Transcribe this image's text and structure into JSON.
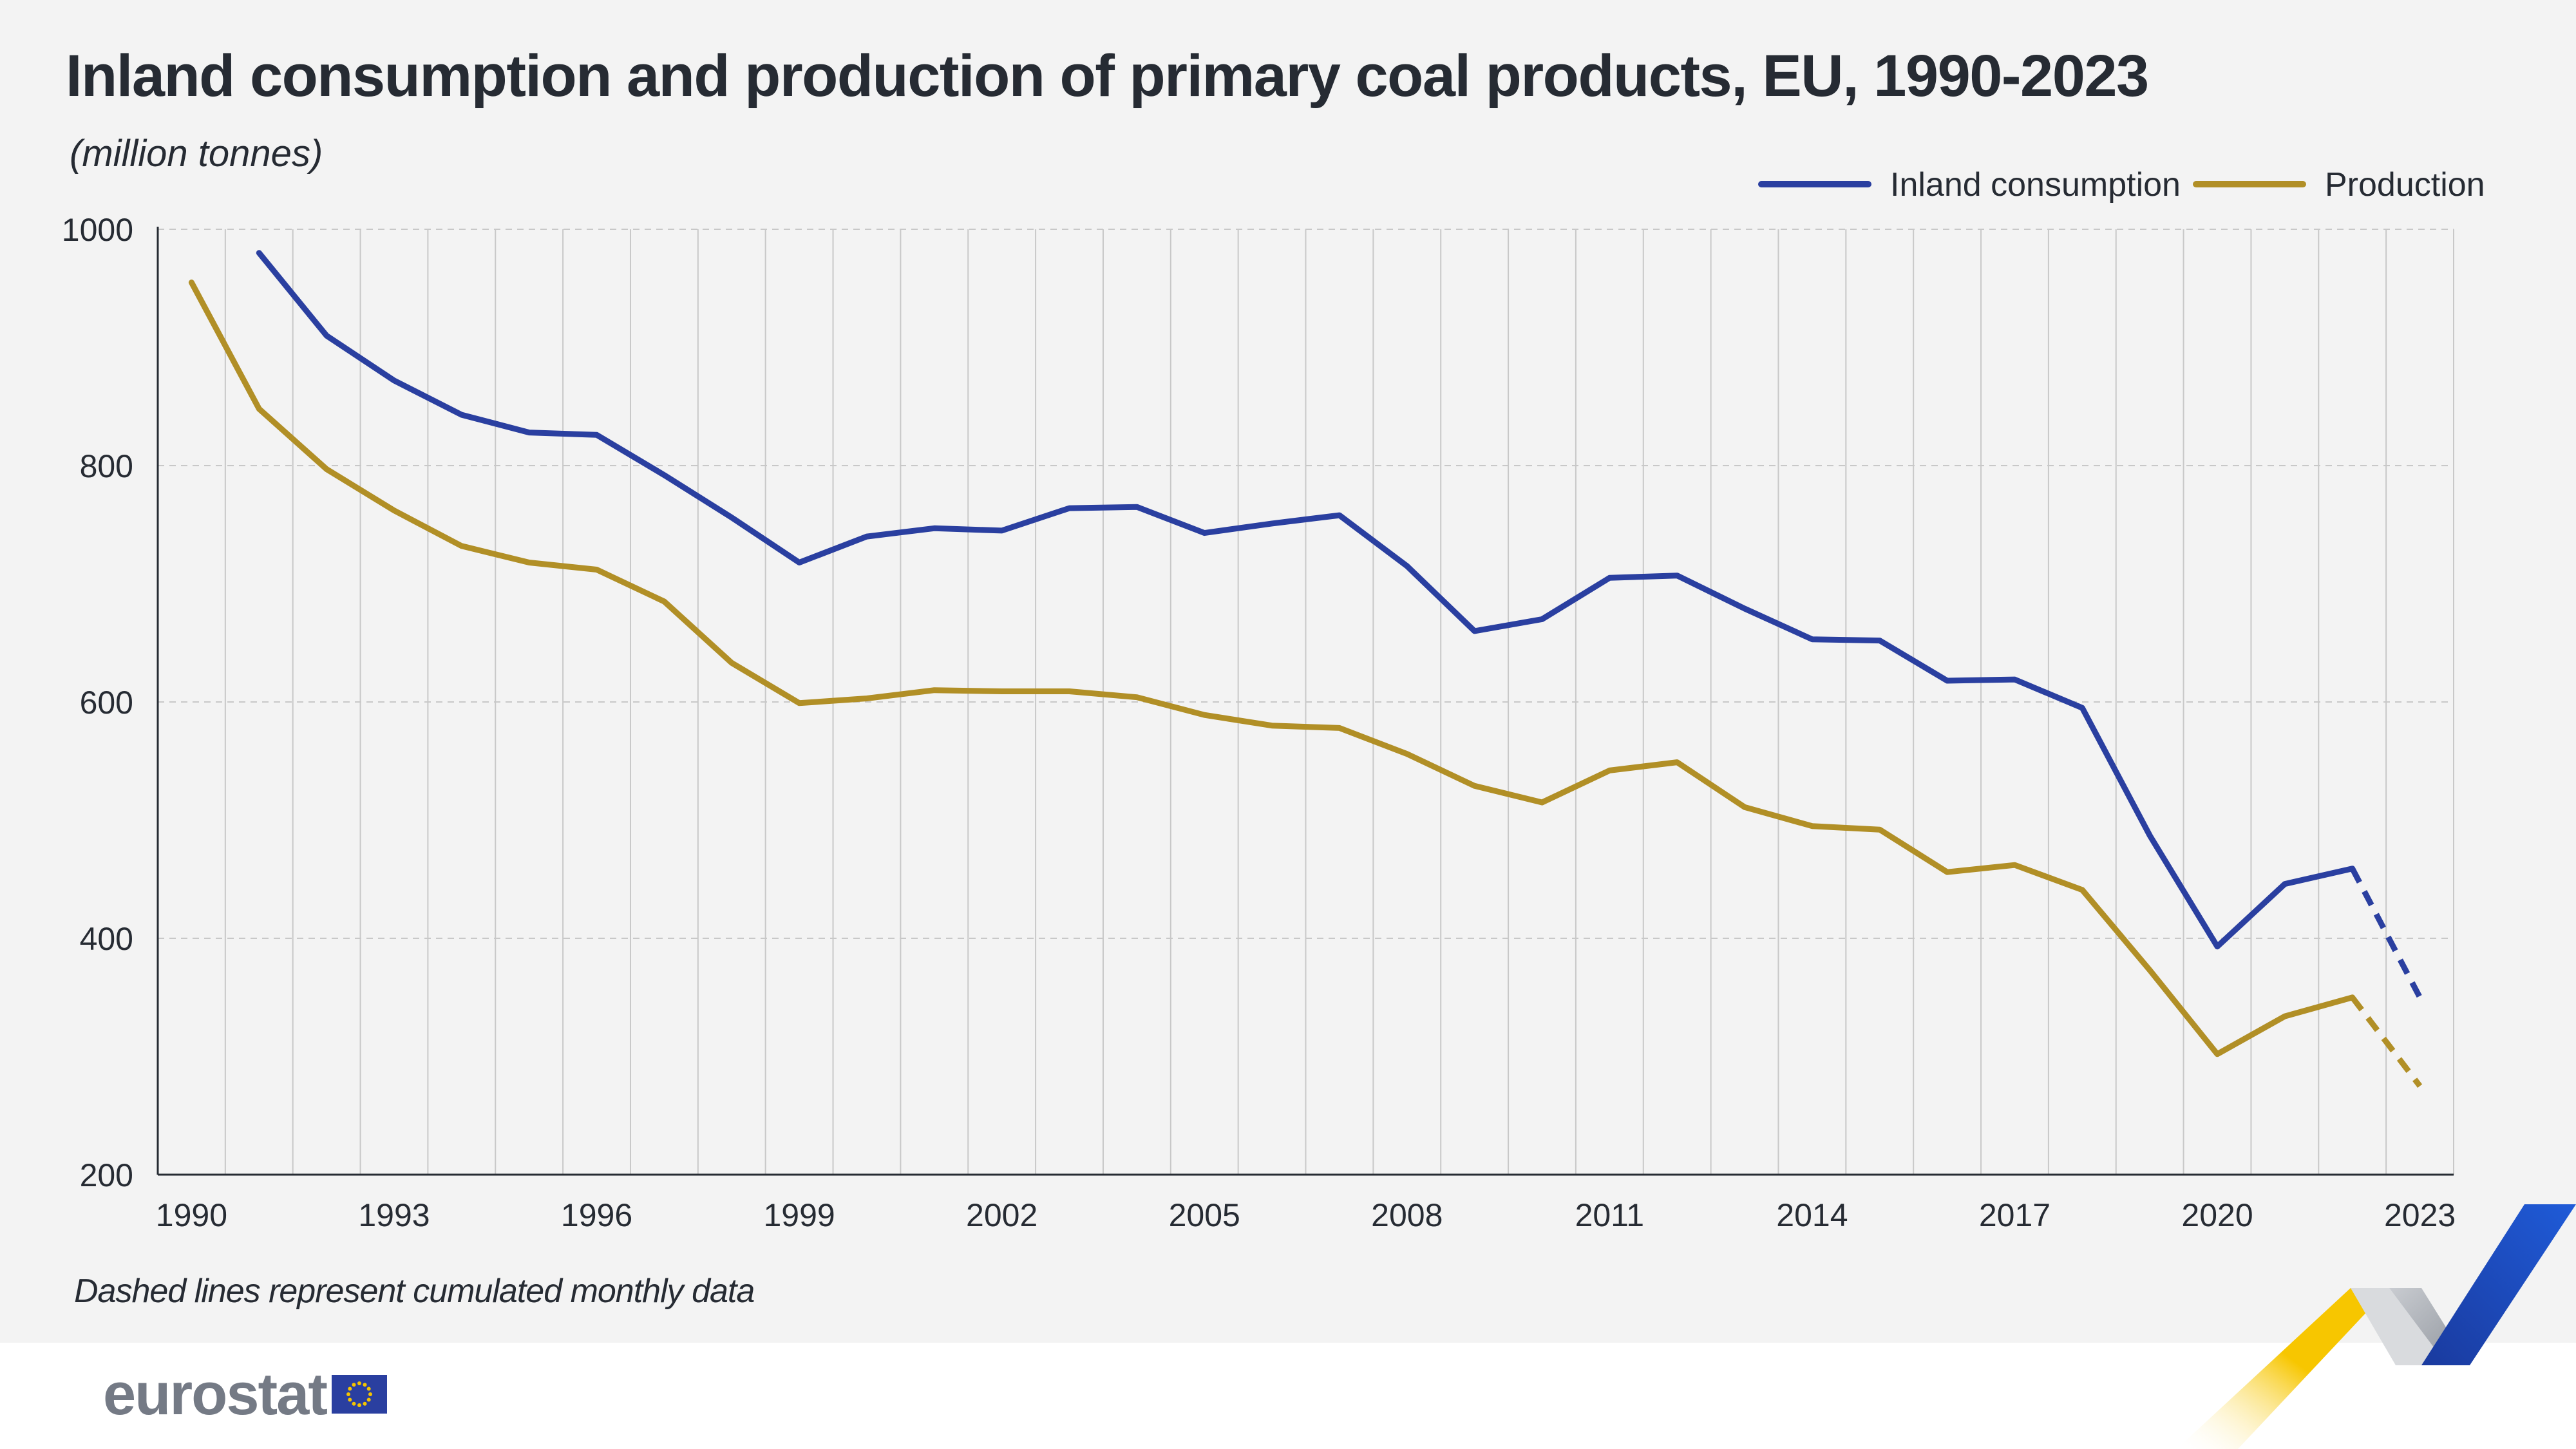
{
  "title": "Inland consumption and production of primary coal products, EU, 1990-2023",
  "subtitle": "(million tonnes)",
  "footnote": "Dashed lines represent cumulated monthly data",
  "logo_text": "eurostat",
  "chart_data": {
    "type": "line",
    "title": "Inland consumption and production of primary coal products, EU, 1990-2023",
    "ylabel": "(million tonnes)",
    "xlabel": "",
    "ylim": [
      200,
      1000
    ],
    "yticks": [
      200,
      400,
      600,
      800,
      1000
    ],
    "xticks": [
      "1990",
      "1993",
      "1996",
      "1999",
      "2002",
      "2005",
      "2008",
      "2011",
      "2014",
      "2017",
      "2020",
      "2023"
    ],
    "x": [
      1990,
      1991,
      1992,
      1993,
      1994,
      1995,
      1996,
      1997,
      1998,
      1999,
      2000,
      2001,
      2002,
      2003,
      2004,
      2005,
      2006,
      2007,
      2008,
      2009,
      2010,
      2011,
      2012,
      2013,
      2014,
      2015,
      2016,
      2017,
      2018,
      2019,
      2020,
      2021,
      2022,
      2023
    ],
    "grid": true,
    "legend_position": "top-right",
    "dashed_from": 2022,
    "series": [
      {
        "name": "Inland consumption",
        "color": "#2a3fa0",
        "values": [
          null,
          980,
          910,
          872,
          843,
          828,
          826,
          792,
          756,
          718,
          740,
          747,
          745,
          764,
          765,
          743,
          751,
          758,
          715,
          660,
          670,
          705,
          707,
          679,
          653,
          652,
          618,
          619,
          595,
          487,
          393,
          446,
          459,
          350
        ]
      },
      {
        "name": "Production",
        "color": "#b18f26",
        "values": [
          955,
          848,
          797,
          762,
          732,
          718,
          712,
          685,
          633,
          599,
          603,
          610,
          609,
          609,
          604,
          589,
          580,
          578,
          556,
          529,
          515,
          542,
          549,
          511,
          495,
          492,
          456,
          462,
          441,
          373,
          302,
          334,
          350,
          275
        ]
      }
    ]
  },
  "colors": {
    "background": "#f3f3f3",
    "grid": "#c8c8c8",
    "axis": "#262b33",
    "consumption": "#2a3fa0",
    "production": "#b18f26",
    "logo_grey": "#747a85",
    "eu_blue": "#2a3fa0",
    "eu_star": "#f5c400"
  }
}
